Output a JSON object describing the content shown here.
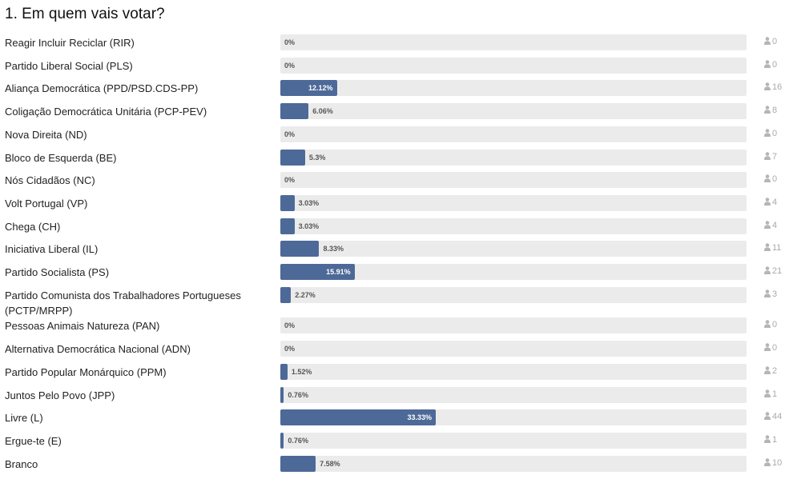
{
  "chart_data": {
    "type": "bar",
    "orientation": "horizontal",
    "title": "1. Em quem vais votar?",
    "xlim": [
      0,
      100
    ],
    "categories": [
      "Reagir Incluir Reciclar (RIR)",
      "Partido Liberal Social (PLS)",
      "Aliança Democrática (PPD/PSD.CDS-PP)",
      "Coligação Democrática Unitária (PCP-PEV)",
      "Nova Direita (ND)",
      "Bloco de Esquerda (BE)",
      "Nós Cidadãos (NC)",
      "Volt Portugal (VP)",
      "Chega (CH)",
      "Iniciativa Liberal (IL)",
      "Partido Socialista (PS)",
      "Partido Comunista dos Trabalhadores Portugueses (PCTP/MRPP)",
      "Pessoas Animais Natureza (PAN)",
      "Alternativa Democrática Nacional (ADN)",
      "Partido Popular Monárquico (PPM)",
      "Juntos Pelo Povo (JPP)",
      "Livre (L)",
      "Ergue-te (E)",
      "Branco"
    ],
    "values": [
      0,
      0,
      12.12,
      6.06,
      0,
      5.3,
      0,
      3.03,
      3.03,
      8.33,
      15.91,
      2.27,
      0,
      0,
      1.52,
      0.76,
      33.33,
      0.76,
      7.58
    ],
    "value_labels": [
      "0%",
      "0%",
      "12.12%",
      "6.06%",
      "0%",
      "5.3%",
      "0%",
      "3.03%",
      "3.03%",
      "8.33%",
      "15.91%",
      "2.27%",
      "0%",
      "0%",
      "1.52%",
      "0.76%",
      "33.33%",
      "0.76%",
      "7.58%"
    ],
    "counts": [
      "0",
      "0",
      "16",
      "8",
      "0",
      "7",
      "0",
      "4",
      "4",
      "11",
      "21",
      "3",
      "0",
      "0",
      "2",
      "1",
      "44",
      "1",
      "10"
    ],
    "count_icon": "user-icon",
    "colors": {
      "bar": "#4d6998",
      "track": "#ebebeb",
      "count": "#aaaaaa"
    }
  }
}
